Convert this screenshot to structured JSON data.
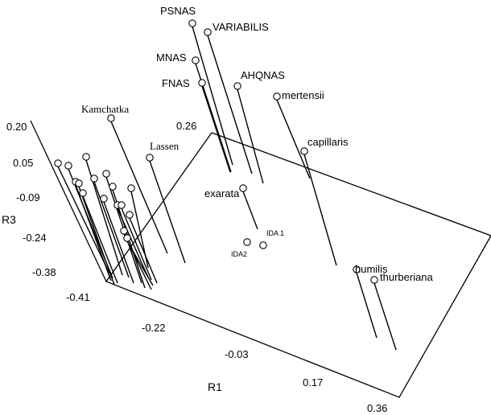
{
  "chart_data": {
    "type": "scatter",
    "projection": "3d",
    "title": "",
    "axes": {
      "r1": {
        "label": "R1",
        "ticks": [
          "-0.41",
          "-0.22",
          "-0.03",
          "0.17",
          "0.36"
        ],
        "range": [
          -0.41,
          0.36
        ]
      },
      "r2": {
        "label": "",
        "ticks": [
          "-0.41",
          "0.26"
        ],
        "range": [
          -0.41,
          0.26
        ]
      },
      "r3": {
        "label": "R3",
        "ticks": [
          "0.20",
          "0.05",
          "-0.09",
          "-0.24",
          "-0.38"
        ],
        "range": [
          -0.38,
          0.2
        ]
      }
    },
    "points": [
      {
        "label": "PSNAS",
        "r1": -0.18,
        "r2": 0.2,
        "r3": 0.38
      },
      {
        "label": "VARIABILIS",
        "r1": -0.15,
        "r2": 0.2,
        "r3": 0.35
      },
      {
        "label": "MNAS",
        "r1": -0.2,
        "r2": 0.16,
        "r3": 0.26
      },
      {
        "label": "FNAS",
        "r1": -0.2,
        "r2": 0.14,
        "r3": 0.22
      },
      {
        "label": "AHQNAS",
        "r1": -0.14,
        "r2": 0.12,
        "r3": 0.2
      },
      {
        "label": "mertensii",
        "r1": -0.06,
        "r2": 0.12,
        "r3": 0.18
      },
      {
        "label": "capillaris",
        "r1": 0.02,
        "r2": 0.1,
        "r3": 0.1
      },
      {
        "label": "Kamchatka",
        "r1": -0.33,
        "r2": 0.0,
        "r3": 0.18
      },
      {
        "label": "Lassen",
        "r1": -0.26,
        "r2": 0.02,
        "r3": 0.06
      },
      {
        "label": "exarata",
        "r1": -0.13,
        "r2": 0.0,
        "r3": -0.02
      },
      {
        "label": "IDA 1",
        "r1": -0.1,
        "r2": 0.0,
        "r3": -0.1
      },
      {
        "label": "IDA2",
        "r1": -0.13,
        "r2": -0.02,
        "r3": -0.12
      },
      {
        "label": "humilis",
        "r1": 0.16,
        "r2": 0.02,
        "r3": -0.02
      },
      {
        "label": "thurberiana",
        "r1": 0.18,
        "r2": 0.0,
        "r3": -0.04
      }
    ],
    "unlabeled_points": 16
  }
}
